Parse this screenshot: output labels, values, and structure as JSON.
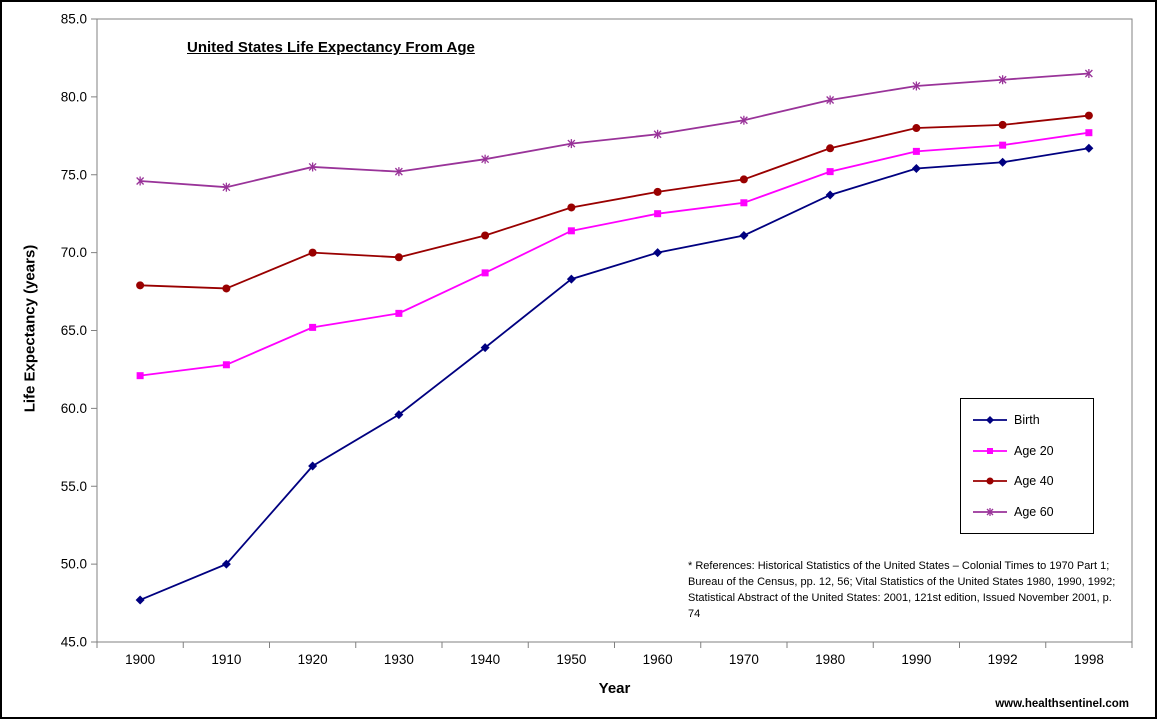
{
  "title": "United States Life Expectancy From Age",
  "axes": {
    "x_label": "Year",
    "y_label": "Life Expectancy (years)"
  },
  "references": {
    "lines": [
      "* References: Historical Statistics of the United States – Colonial Times to 1970 Part 1;",
      "Bureau of the Census, pp. 12, 56; Vital Statistics of the United States 1980, 1990, 1992;",
      "Statistical Abstract of the United States: 2001, 121st edition, Issued November 2001, p. 74"
    ]
  },
  "footer": {
    "website": "www.healthsentinel.com"
  },
  "chart_data": {
    "type": "line",
    "title": "United States Life Expectancy From Age",
    "xlabel": "Year",
    "ylabel": "Life Expectancy (years)",
    "categories": [
      "1900",
      "1910",
      "1920",
      "1930",
      "1940",
      "1950",
      "1960",
      "1970",
      "1980",
      "1990",
      "1992",
      "1998"
    ],
    "ylim": [
      45.0,
      85.0
    ],
    "y_tick_labels": [
      "45.0",
      "50.0",
      "55.0",
      "60.0",
      "65.0",
      "70.0",
      "75.0",
      "80.0",
      "85.0"
    ],
    "grid": false,
    "legend_position": "middle-right",
    "frame_color": "#808080",
    "series": [
      {
        "name": "Birth",
        "color": "#000080",
        "marker": "diamond",
        "values": [
          47.7,
          50.0,
          56.3,
          59.6,
          63.9,
          68.3,
          70.0,
          71.1,
          73.7,
          75.4,
          75.8,
          76.7
        ]
      },
      {
        "name": "Age 20",
        "color": "#FF00FF",
        "marker": "square",
        "values": [
          62.1,
          62.8,
          65.2,
          66.1,
          68.7,
          71.4,
          72.5,
          73.2,
          75.2,
          76.5,
          76.9,
          77.7
        ]
      },
      {
        "name": "Age 40",
        "color": "#990000",
        "marker": "circle",
        "values": [
          67.9,
          67.7,
          70.0,
          69.7,
          71.1,
          72.9,
          73.9,
          74.7,
          76.7,
          78.0,
          78.2,
          78.8
        ]
      },
      {
        "name": "Age 60",
        "color": "#993399",
        "marker": "star",
        "values": [
          74.6,
          74.2,
          75.5,
          75.2,
          76.0,
          77.0,
          77.6,
          78.5,
          79.8,
          80.7,
          81.1,
          81.5
        ]
      }
    ]
  }
}
